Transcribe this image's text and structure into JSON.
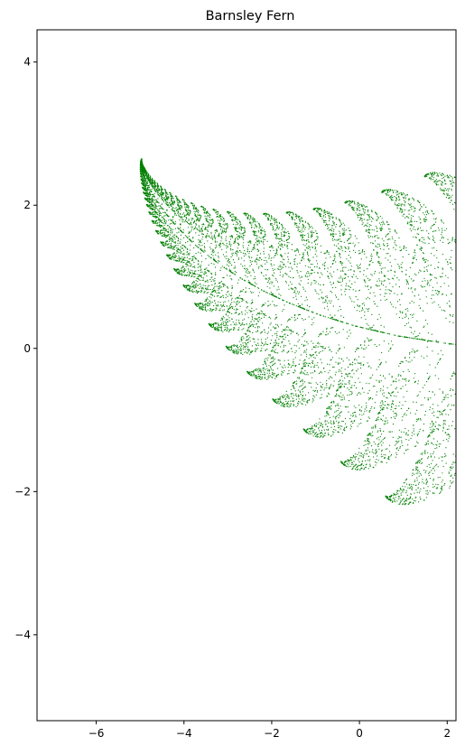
{
  "chart_data": {
    "type": "scatter",
    "title": "Barnsley Fern",
    "xlabel": "",
    "ylabel": "",
    "xlim": [
      -7.35,
      2.2
    ],
    "ylim": [
      -5.2,
      4.45
    ],
    "xticks": [
      -6,
      -4,
      -2,
      0,
      2
    ],
    "yticks": [
      -4,
      -2,
      0,
      2,
      4
    ],
    "xtick_labels": [
      "−6",
      "−4",
      "−2",
      "0",
      "2"
    ],
    "ytick_labels": [
      "−4",
      "−2",
      "0",
      "2",
      "4"
    ],
    "grid": false,
    "marker_color": "#008000",
    "ifs": {
      "rotation_degrees": 90,
      "center": [
        0,
        0
      ],
      "transforms": [
        {
          "a": 0.0,
          "b": 0.0,
          "c": 0.0,
          "d": 0.16,
          "e": 0.0,
          "f": 0.0,
          "p": 0.01
        },
        {
          "a": 0.85,
          "b": 0.04,
          "c": -0.04,
          "d": 0.85,
          "e": 0.0,
          "f": 1.6,
          "p": 0.85
        },
        {
          "a": 0.2,
          "b": -0.26,
          "c": 0.23,
          "d": 0.22,
          "e": 0.0,
          "f": 1.6,
          "p": 0.07
        },
        {
          "a": -0.15,
          "b": 0.28,
          "c": 0.26,
          "d": 0.24,
          "e": 0.0,
          "f": 0.44,
          "p": 0.07
        }
      ]
    }
  }
}
